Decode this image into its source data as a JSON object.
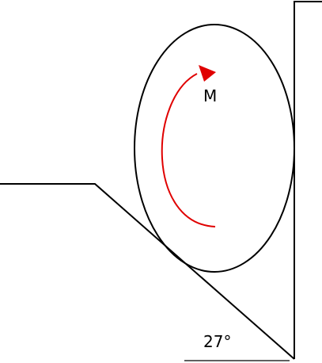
{
  "moment_label": "M",
  "angle_label": "27°",
  "colors": {
    "line": "#000000",
    "moment_arrow": "#e00000",
    "background": "#ffffff"
  }
}
